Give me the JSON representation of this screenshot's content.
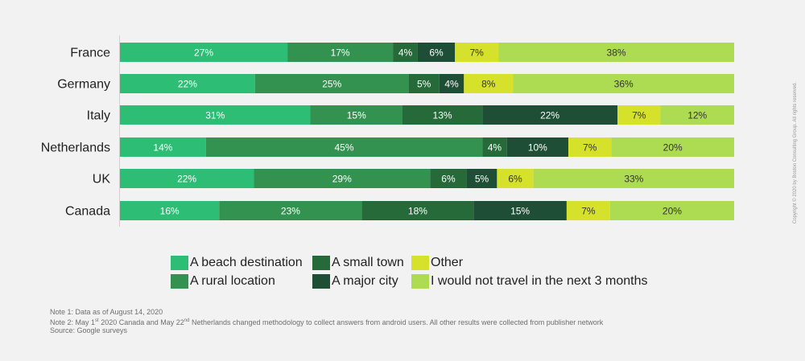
{
  "chart_data": {
    "type": "bar",
    "orientation": "horizontal",
    "stacked": true,
    "categories": [
      "France",
      "Germany",
      "Italy",
      "Netherlands",
      "UK",
      "Canada"
    ],
    "series": [
      {
        "name": "A beach destination",
        "color": "#2dbd74",
        "values": [
          27,
          22,
          31,
          14,
          22,
          16
        ]
      },
      {
        "name": "A rural location",
        "color": "#33924f",
        "values": [
          17,
          25,
          15,
          45,
          29,
          23
        ]
      },
      {
        "name": "A small town",
        "color": "#256a38",
        "values": [
          4,
          5,
          13,
          4,
          6,
          18
        ]
      },
      {
        "name": "A major city",
        "color": "#1f4e36",
        "values": [
          6,
          4,
          22,
          10,
          5,
          15
        ]
      },
      {
        "name": "Other",
        "color": "#d6e12b",
        "values": [
          7,
          8,
          7,
          7,
          6,
          7
        ]
      },
      {
        "name": "I would not travel in the next 3 months",
        "color": "#addb51",
        "values": [
          38,
          36,
          12,
          20,
          33,
          20
        ]
      }
    ],
    "value_suffix": "%",
    "legend_position": "bottom",
    "grid": false
  },
  "legend_order": [
    0,
    2,
    4,
    1,
    3,
    5
  ],
  "notes": [
    {
      "text": "Note 1: Data as of August 14, 2020"
    },
    {
      "text": "Note 2: May 1",
      "sup1": "st",
      "mid": " 2020 Canada and May 22",
      "sup2": "nd",
      "tail": " Netherlands changed methodology to collect answers from android users. All other results were collected from publisher network"
    },
    {
      "text": "Source: Google surveys"
    }
  ],
  "copyright": "Copyright © 2020 by Boston Consulting Group. All rights reserved."
}
